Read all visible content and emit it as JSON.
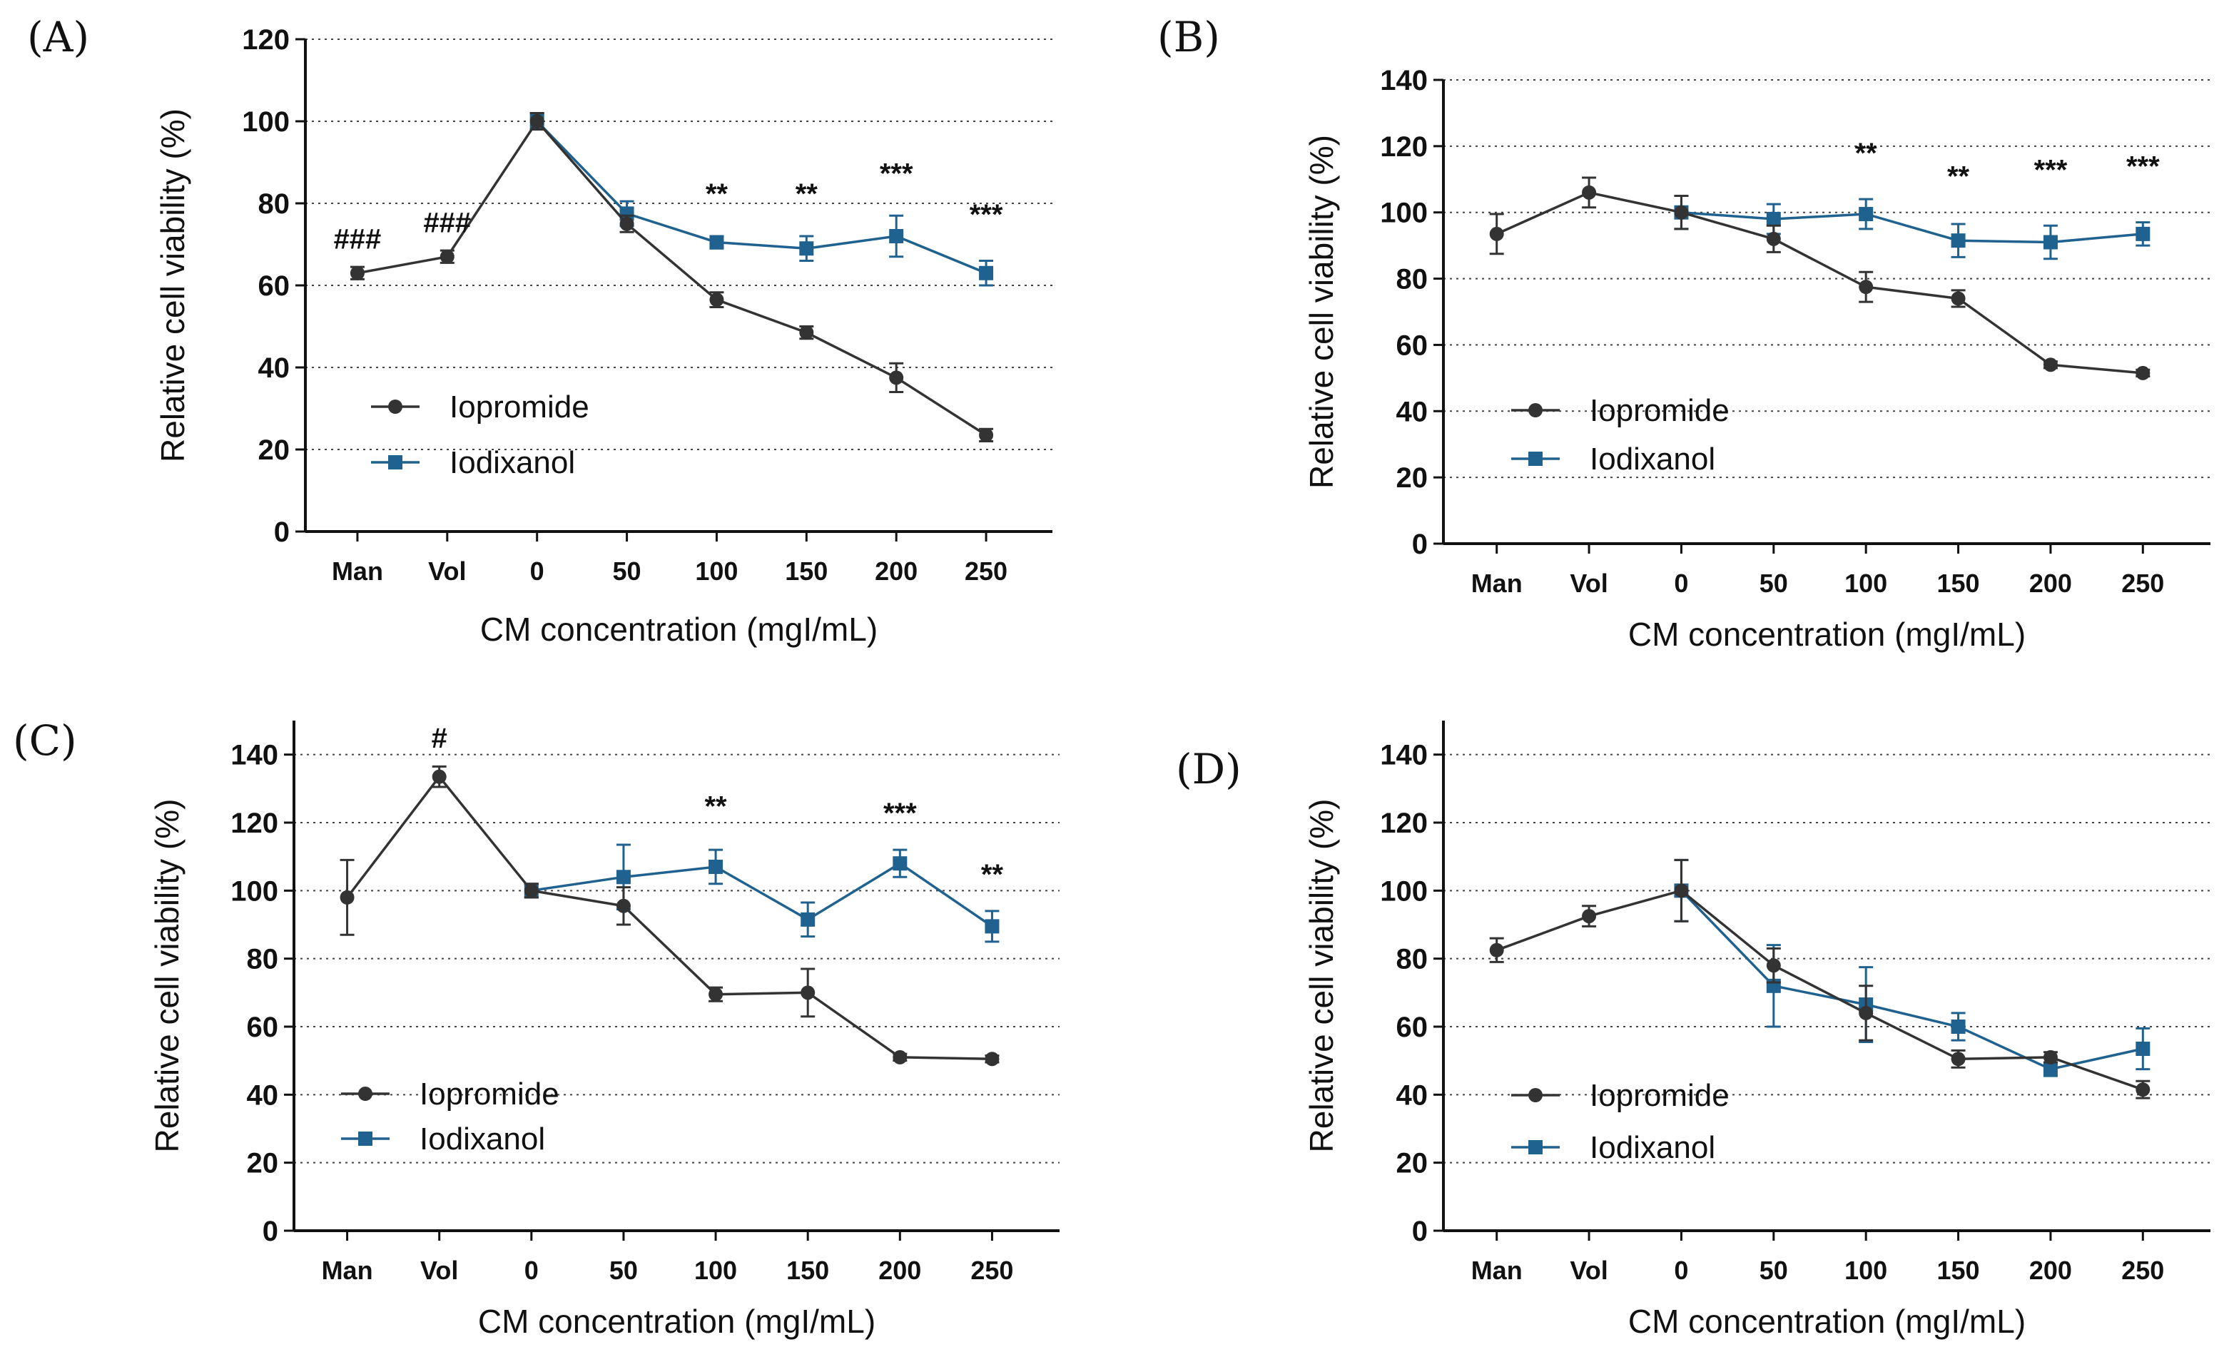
{
  "colors": {
    "iopromide": "#333333",
    "iodixanol": "#20628f",
    "axis": "#111111"
  },
  "chart_data": [
    {
      "panel": "(A)",
      "type": "line",
      "title": "",
      "xlabel": "CM concentration  (mgI/mL)",
      "ylabel": "Relative cell viability  (%)",
      "categories": [
        "Man",
        "Vol",
        "0",
        "50",
        "100",
        "150",
        "200",
        "250"
      ],
      "ylim": [
        0,
        120
      ],
      "yticks": [
        0,
        20,
        40,
        60,
        80,
        100,
        120
      ],
      "grid": true,
      "legend_position": "bottom-left",
      "series": [
        {
          "name": "Iopromide",
          "marker": "circle",
          "color": "#333333",
          "values": [
            63,
            67,
            100,
            75,
            56.5,
            48.5,
            37.5,
            23.5
          ],
          "errors": [
            1.5,
            1.5,
            2,
            2,
            1.8,
            1.5,
            3.5,
            1.5
          ]
        },
        {
          "name": "Iodixanol",
          "marker": "square",
          "color": "#20628f",
          "values": [
            null,
            null,
            100,
            77.5,
            70.5,
            69,
            72,
            63
          ],
          "errors": [
            null,
            null,
            2,
            3,
            1.5,
            3,
            5,
            3
          ]
        }
      ],
      "annotations": [
        {
          "category": "Man",
          "text": "###",
          "y": 69
        },
        {
          "category": "Vol",
          "text": "###",
          "y": 73
        },
        {
          "category": "100",
          "text": "**",
          "y": 80
        },
        {
          "category": "150",
          "text": "**",
          "y": 80
        },
        {
          "category": "200",
          "text": "***",
          "y": 85
        },
        {
          "category": "250",
          "text": "***",
          "y": 75
        }
      ]
    },
    {
      "panel": "(B)",
      "type": "line",
      "title": "",
      "xlabel": "CM concentration  (mgI/mL)",
      "ylabel": "Relative cell viability  (%)",
      "categories": [
        "Man",
        "Vol",
        "0",
        "50",
        "100",
        "150",
        "200",
        "250"
      ],
      "ylim": [
        0,
        140
      ],
      "yticks": [
        0,
        20,
        40,
        60,
        80,
        100,
        120,
        140
      ],
      "grid": true,
      "legend_position": "bottom-left",
      "series": [
        {
          "name": "Iopromide",
          "marker": "circle",
          "color": "#333333",
          "values": [
            93.5,
            106,
            100,
            92,
            77.5,
            74,
            54,
            51.5
          ],
          "errors": [
            6,
            4.5,
            5,
            4,
            4.5,
            2.5,
            1,
            1
          ]
        },
        {
          "name": "Iodixanol",
          "marker": "square",
          "color": "#20628f",
          "values": [
            null,
            null,
            100,
            98,
            99.5,
            91.5,
            91,
            93.5
          ],
          "errors": [
            null,
            null,
            5,
            4.5,
            4.5,
            5,
            5,
            3.5
          ]
        }
      ],
      "annotations": [
        {
          "category": "100",
          "text": "**",
          "y": 115
        },
        {
          "category": "150",
          "text": "**",
          "y": 108
        },
        {
          "category": "200",
          "text": "***",
          "y": 110
        },
        {
          "category": "250",
          "text": "***",
          "y": 111
        }
      ]
    },
    {
      "panel": "(C)",
      "type": "line",
      "title": "",
      "xlabel": "CM concentration  (mgI/mL)",
      "ylabel": "Relative cell viability  (%)",
      "categories": [
        "Man",
        "Vol",
        "0",
        "50",
        "100",
        "150",
        "200",
        "250"
      ],
      "ylim": [
        0,
        150
      ],
      "yticks": [
        0,
        20,
        40,
        60,
        80,
        100,
        120,
        140
      ],
      "grid": true,
      "legend_position": "bottom-left",
      "series": [
        {
          "name": "Iopromide",
          "marker": "circle",
          "color": "#333333",
          "values": [
            98,
            133.5,
            100,
            95.5,
            69.5,
            70,
            51,
            50.5
          ],
          "errors": [
            11,
            3,
            2,
            5.5,
            2,
            7,
            1,
            1
          ]
        },
        {
          "name": "Iodixanol",
          "marker": "square",
          "color": "#20628f",
          "values": [
            null,
            null,
            100,
            104,
            107,
            91.5,
            108,
            89.5
          ],
          "errors": [
            null,
            null,
            2,
            9.5,
            5,
            5,
            4,
            4.5
          ]
        }
      ],
      "annotations": [
        {
          "category": "Vol",
          "text": "#",
          "y": 142
        },
        {
          "category": "100",
          "text": "**",
          "y": 122
        },
        {
          "category": "200",
          "text": "***",
          "y": 120
        },
        {
          "category": "250",
          "text": "**",
          "y": 102
        }
      ]
    },
    {
      "panel": "(D)",
      "type": "line",
      "title": "",
      "xlabel": "CM concentration  (mgI/mL)",
      "ylabel": "Relative cell viability  (%)",
      "categories": [
        "Man",
        "Vol",
        "0",
        "50",
        "100",
        "150",
        "200",
        "250"
      ],
      "ylim": [
        0,
        150
      ],
      "yticks": [
        0,
        20,
        40,
        60,
        80,
        100,
        120,
        140
      ],
      "grid": true,
      "legend_position": "bottom-left",
      "series": [
        {
          "name": "Iopromide",
          "marker": "circle",
          "color": "#333333",
          "values": [
            82.5,
            92.5,
            100,
            78,
            64,
            50.5,
            51,
            41.5
          ],
          "errors": [
            3.5,
            3,
            9,
            5,
            8,
            2.5,
            1.5,
            2.5
          ]
        },
        {
          "name": "Iodixanol",
          "marker": "square",
          "color": "#20628f",
          "values": [
            null,
            null,
            100,
            72,
            66.5,
            60,
            47.5,
            53.5
          ],
          "errors": [
            null,
            null,
            9,
            12,
            11,
            4,
            2,
            6
          ]
        }
      ],
      "annotations": []
    }
  ]
}
